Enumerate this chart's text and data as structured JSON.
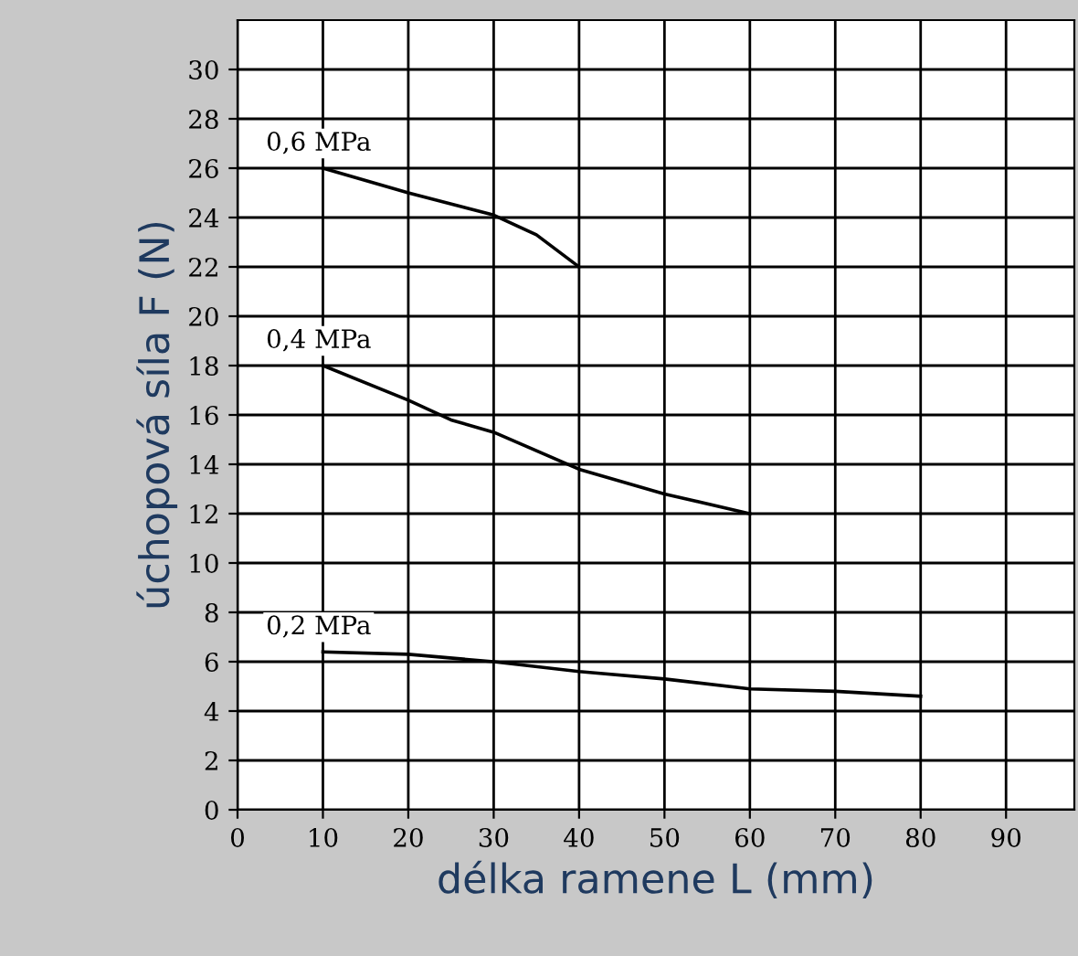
{
  "chart_data": {
    "type": "line",
    "xlabel": "délka ramene L (mm)",
    "ylabel": "úchopová síla F (N)",
    "xlim": [
      0,
      98
    ],
    "ylim": [
      0,
      32
    ],
    "xticks": [
      0,
      10,
      20,
      30,
      40,
      50,
      60,
      70,
      80,
      90
    ],
    "yticks": [
      0,
      2,
      4,
      6,
      8,
      10,
      12,
      14,
      16,
      18,
      20,
      22,
      24,
      26,
      28,
      30
    ],
    "grid": true,
    "marker": "none",
    "line_style": "solid",
    "series": [
      {
        "name": "0,6 MPa",
        "color": "#000000",
        "x": [
          10,
          20,
          30,
          35,
          40
        ],
        "values": [
          26,
          25,
          24.1,
          23.3,
          22
        ]
      },
      {
        "name": "0,4 MPa",
        "color": "#000000",
        "x": [
          10,
          20,
          25,
          30,
          40,
          50,
          60
        ],
        "values": [
          18,
          16.6,
          15.8,
          15.3,
          13.8,
          12.8,
          12
        ]
      },
      {
        "name": "0,2 MPa",
        "color": "#000000",
        "x": [
          10,
          20,
          30,
          40,
          50,
          60,
          70,
          80
        ],
        "values": [
          6.4,
          6.3,
          6,
          5.6,
          5.3,
          4.9,
          4.8,
          4.6
        ]
      }
    ]
  }
}
